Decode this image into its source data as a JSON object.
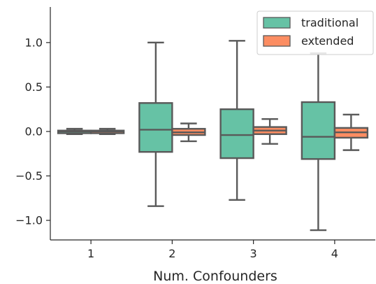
{
  "chart_data": {
    "type": "box",
    "title": "",
    "xlabel": "Num. Confounders",
    "ylabel": "",
    "categories": [
      "1",
      "2",
      "3",
      "4"
    ],
    "ylim": [
      -1.22,
      1.4
    ],
    "yticks": [
      -1.0,
      -0.5,
      0.0,
      0.5,
      1.0
    ],
    "ytick_labels": [
      "−1.0",
      "−0.5",
      "0.0",
      "0.5",
      "1.0"
    ],
    "grid": false,
    "legend_position": "top-right",
    "series": [
      {
        "name": "traditional",
        "color": "#66c2a5",
        "boxes": [
          {
            "whisker_low": -0.03,
            "q1": -0.02,
            "median": 0.0,
            "q3": 0.01,
            "whisker_high": 0.03
          },
          {
            "whisker_low": -0.84,
            "q1": -0.23,
            "median": 0.02,
            "q3": 0.32,
            "whisker_high": 1.0
          },
          {
            "whisker_low": -0.77,
            "q1": -0.3,
            "median": -0.04,
            "q3": 0.25,
            "whisker_high": 1.02
          },
          {
            "whisker_low": -1.11,
            "q1": -0.31,
            "median": -0.06,
            "q3": 0.33,
            "whisker_high": 0.88
          }
        ]
      },
      {
        "name": "extended",
        "color": "#fc8d62",
        "boxes": [
          {
            "whisker_low": -0.03,
            "q1": -0.02,
            "median": 0.0,
            "q3": 0.01,
            "whisker_high": 0.03
          },
          {
            "whisker_low": -0.11,
            "q1": -0.04,
            "median": -0.01,
            "q3": 0.03,
            "whisker_high": 0.09
          },
          {
            "whisker_low": -0.14,
            "q1": -0.03,
            "median": 0.01,
            "q3": 0.05,
            "whisker_high": 0.14
          },
          {
            "whisker_low": -0.21,
            "q1": -0.07,
            "median": -0.01,
            "q3": 0.04,
            "whisker_high": 0.19
          }
        ]
      }
    ]
  }
}
